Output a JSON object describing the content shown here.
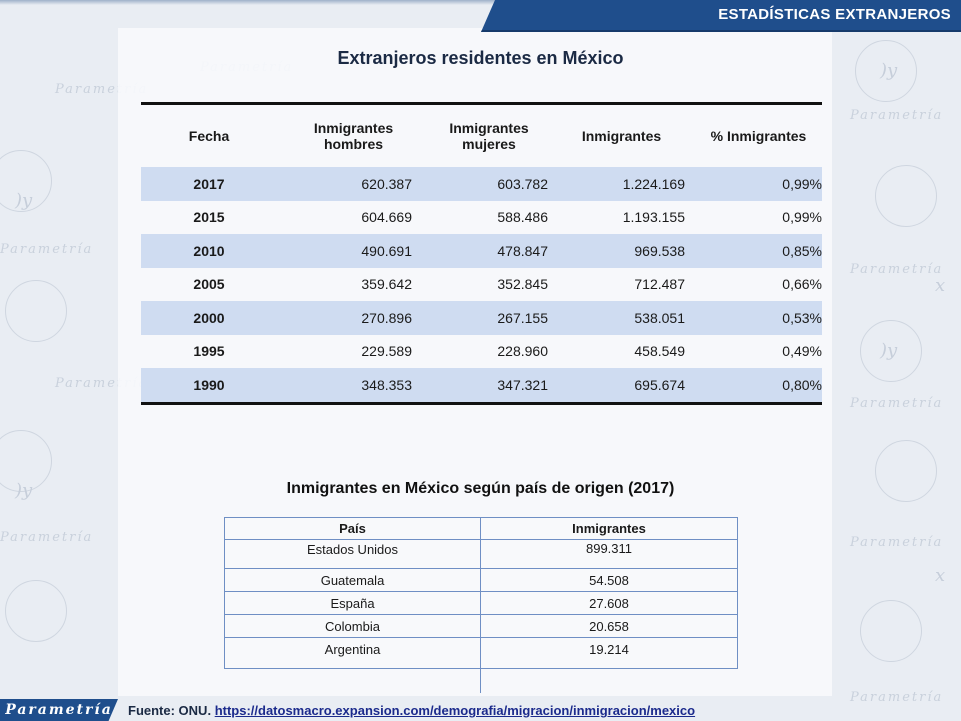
{
  "header": {
    "banner": "ESTADÍSTICAS EXTRANJEROS"
  },
  "table1": {
    "title": "Extranjeros residentes en México",
    "columns": [
      "Fecha",
      "Inmigrantes hombres",
      "Inmigrantes mujeres",
      "Inmigrantes",
      "% Inmigrantes"
    ],
    "rows": [
      [
        "2017",
        "620.387",
        "603.782",
        "1.224.169",
        "0,99%"
      ],
      [
        "2015",
        "604.669",
        "588.486",
        "1.193.155",
        "0,99%"
      ],
      [
        "2010",
        "490.691",
        "478.847",
        "969.538",
        "0,85%"
      ],
      [
        "2005",
        "359.642",
        "352.845",
        "712.487",
        "0,66%"
      ],
      [
        "2000",
        "270.896",
        "267.155",
        "538.051",
        "0,53%"
      ],
      [
        "1995",
        "229.589",
        "228.960",
        "458.549",
        "0,49%"
      ],
      [
        "1990",
        "348.353",
        "347.321",
        "695.674",
        "0,80%"
      ]
    ]
  },
  "table2": {
    "title": "Inmigrantes en México según país de origen (2017)",
    "columns": [
      "País",
      "Inmigrantes"
    ],
    "rows": [
      [
        "Estados Unidos",
        "899.311"
      ],
      [
        "Guatemala",
        "54.508"
      ],
      [
        "España",
        "27.608"
      ],
      [
        "Colombia",
        "20.658"
      ],
      [
        "Argentina",
        "19.214"
      ]
    ]
  },
  "footer": {
    "logo": "Parametría",
    "source_label": "Fuente:  ONU.",
    "source_link": "https://datosmacro.expansion.com/demografia/migracion/inmigracion/mexico"
  },
  "background": {
    "watermark": "Parametría"
  },
  "colors": {
    "brand": "#1f4e8c",
    "row_shade": "#cfdcf1",
    "table_border": "#6f8fc4"
  }
}
